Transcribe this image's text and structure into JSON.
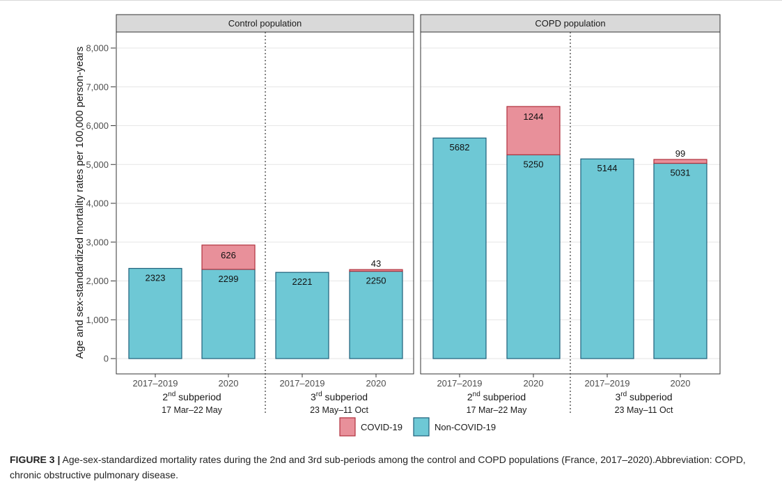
{
  "chart_data": {
    "type": "bar",
    "stacked": true,
    "ylabel": "Age and sex-standardized mortality rates per 100,000 person-years",
    "ylim": [
      0,
      8000
    ],
    "yticks": [
      0,
      1000,
      2000,
      3000,
      4000,
      5000,
      6000,
      7000,
      8000
    ],
    "ytick_labels": [
      "0",
      "1,000",
      "2,000",
      "3,000",
      "4,000",
      "5,000",
      "6,000",
      "7,000",
      "8,000"
    ],
    "grid": true,
    "legend_position": "bottom",
    "series": [
      {
        "name": "COVID-19",
        "color": "#e8909a"
      },
      {
        "name": "Non-COVID-19",
        "color": "#6ec8d5"
      }
    ],
    "panels": [
      {
        "title": "Control population",
        "categories": [
          "2017–2019",
          "2020",
          "2017–2019",
          "2020"
        ],
        "non_covid": [
          2323,
          2299,
          2221,
          2250
        ],
        "covid": [
          0,
          626,
          0,
          43
        ],
        "groups": [
          {
            "sup": "nd",
            "number": "2",
            "label": " subperiod",
            "dates": "17 Mar–22 May"
          },
          {
            "sup": "rd",
            "number": "3",
            "label": " subperiod",
            "dates": "23 May–11 Oct"
          }
        ]
      },
      {
        "title": "COPD population",
        "categories": [
          "2017–2019",
          "2020",
          "2017–2019",
          "2020"
        ],
        "non_covid": [
          5682,
          5250,
          5144,
          5031
        ],
        "covid": [
          0,
          1244,
          0,
          99
        ],
        "groups": [
          {
            "sup": "nd",
            "number": "2",
            "label": " subperiod",
            "dates": "17 Mar–22 May"
          },
          {
            "sup": "rd",
            "number": "3",
            "label": " subperiod",
            "dates": "23 May–11 Oct"
          }
        ]
      }
    ]
  },
  "caption": {
    "label": "FIGURE 3 |",
    "text": " Age-sex-standardized mortality rates during the 2nd and 3rd sub-periods among the control and COPD populations (France, 2017–2020).Abbreviation: COPD, chronic obstructive pulmonary disease."
  },
  "colors": {
    "covid_fill": "#e8909a",
    "covid_stroke": "#b0303c",
    "noncovid_fill": "#6ec8d5",
    "noncovid_stroke": "#1d5f7a",
    "strip_fill": "#d9d9d9"
  }
}
